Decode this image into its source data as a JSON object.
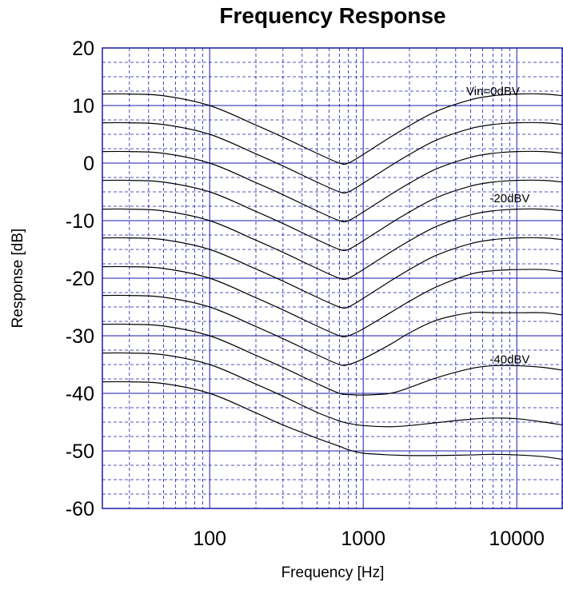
{
  "colors": {
    "grid": "#1a1aaa",
    "curve": "#000000",
    "background": "#ffffff"
  },
  "chart_data": {
    "type": "line",
    "title": "Frequency Response",
    "xlabel": "Frequency [Hz]",
    "ylabel": "Response [dB]",
    "xscale": "log",
    "xlim": [
      20,
      20000
    ],
    "ylim": [
      -60,
      20
    ],
    "x_ticks": [
      "100",
      "1000",
      "10000"
    ],
    "y_ticks": [
      "20",
      "10",
      "0",
      "-10",
      "-20",
      "-30",
      "-40",
      "-50",
      "-60"
    ],
    "grid": true,
    "annotations": [
      {
        "text": "Vin=0dBV",
        "x": 7000,
        "y": 11.8
      },
      {
        "text": "-20dBV",
        "x": 9000,
        "y": -6.8
      },
      {
        "text": "-40dBV",
        "x": 9000,
        "y": -34.8
      }
    ],
    "x": [
      20,
      30,
      50,
      100,
      200,
      300,
      500,
      700,
      800,
      1000,
      1500,
      2000,
      3000,
      5000,
      7000,
      10000,
      15000,
      20000
    ],
    "series": [
      {
        "values": [
          12,
          12,
          11.7,
          10,
          6.6,
          4.5,
          1.7,
          0,
          0,
          1.5,
          4.5,
          6.5,
          9.0,
          11.0,
          11.7,
          12.0,
          12.0,
          11.7
        ]
      },
      {
        "values": [
          7,
          7,
          6.7,
          5,
          1.6,
          -0.5,
          -3.3,
          -5,
          -5,
          -3.5,
          -0.5,
          1.5,
          4.0,
          6.0,
          6.7,
          7.0,
          7.0,
          6.7
        ]
      },
      {
        "values": [
          2,
          2,
          1.7,
          0,
          -3.4,
          -5.5,
          -8.3,
          -10,
          -10,
          -8.5,
          -5.5,
          -3.5,
          -1.0,
          1.0,
          1.7,
          2.0,
          2.0,
          1.7
        ]
      },
      {
        "values": [
          -3,
          -3,
          -3.3,
          -5,
          -8.4,
          -10.5,
          -13.3,
          -15,
          -15,
          -13.5,
          -10.5,
          -8.5,
          -6.0,
          -4.0,
          -3.3,
          -3.0,
          -3.0,
          -3.3
        ]
      },
      {
        "values": [
          -8,
          -8,
          -8.3,
          -10,
          -13.4,
          -15.5,
          -18.3,
          -20,
          -20,
          -18.5,
          -15.5,
          -13.5,
          -11.0,
          -9.0,
          -8.3,
          -8.0,
          -8.0,
          -8.3
        ]
      },
      {
        "values": [
          -13,
          -13,
          -13.3,
          -15,
          -18.4,
          -20.5,
          -23.3,
          -25,
          -25,
          -23.5,
          -20.5,
          -18.5,
          -16.0,
          -14.0,
          -13.3,
          -13.0,
          -13.0,
          -13.3
        ]
      },
      {
        "values": [
          -18,
          -18,
          -18.3,
          -20,
          -23.4,
          -25.5,
          -28.3,
          -30,
          -30,
          -28.8,
          -26.0,
          -24.0,
          -21.5,
          -19.3,
          -18.7,
          -18.5,
          -18.5,
          -18.9
        ]
      },
      {
        "values": [
          -23,
          -23,
          -23.3,
          -25,
          -28.4,
          -30.5,
          -33.3,
          -35,
          -35,
          -34.0,
          -31.5,
          -29.5,
          -27.3,
          -26.0,
          -26.0,
          -26.0,
          -26.0,
          -26.4
        ]
      },
      {
        "values": [
          -28,
          -28,
          -28.3,
          -30,
          -33.4,
          -35.5,
          -38.3,
          -40,
          -40.2,
          -40.3,
          -40.0,
          -39.0,
          -37.3,
          -35.7,
          -35.2,
          -35.2,
          -35.5,
          -36.0
        ]
      },
      {
        "values": [
          -33,
          -33,
          -33.3,
          -35,
          -38.4,
          -40.5,
          -43.3,
          -44.8,
          -45.2,
          -45.6,
          -45.8,
          -45.6,
          -45.1,
          -44.5,
          -44.3,
          -44.4,
          -45.0,
          -45.5
        ]
      },
      {
        "values": [
          -38,
          -38,
          -38.3,
          -40,
          -43.4,
          -45.5,
          -47.8,
          -49.2,
          -49.8,
          -50.4,
          -50.7,
          -50.8,
          -50.8,
          -50.7,
          -50.6,
          -50.7,
          -51.0,
          -51.5
        ]
      }
    ]
  }
}
